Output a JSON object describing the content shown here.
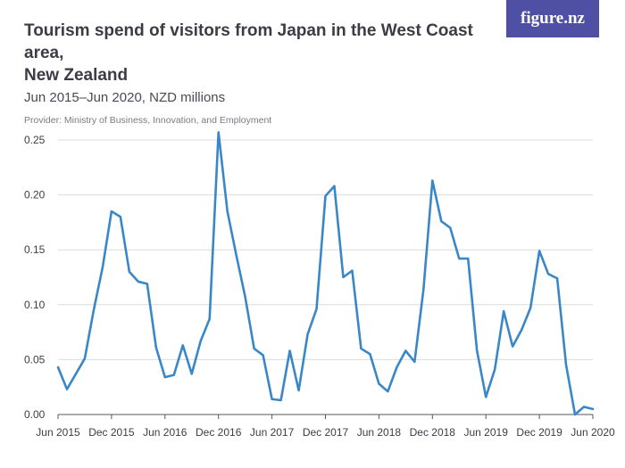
{
  "header": {
    "title_line1": "Tourism spend of visitors from Japan in the West Coast area,",
    "title_line2": "New Zealand",
    "subtitle": "Jun 2015–Jun 2020, NZD millions",
    "provider": "Provider: Ministry of Business, Innovation, and Employment"
  },
  "brand": {
    "logo_text": "figure.nz",
    "logo_color": "#4f4fa3"
  },
  "chart_data": {
    "type": "line",
    "title": "Tourism spend of visitors from Japan in the West Coast area, New Zealand",
    "subtitle": "Jun 2015–Jun 2020, NZD millions",
    "xlabel": "",
    "ylabel": "",
    "ylim": [
      0,
      0.25
    ],
    "y_ticks": [
      "0.00",
      "0.05",
      "0.10",
      "0.15",
      "0.20",
      "0.25"
    ],
    "x_ticks": [
      "Jun 2015",
      "Dec 2015",
      "Jun 2016",
      "Dec 2016",
      "Jun 2017",
      "Dec 2017",
      "Jun 2018",
      "Dec 2018",
      "Jun 2019",
      "Dec 2019",
      "Jun 2020"
    ],
    "grid": true,
    "line_color": "#3a87c8",
    "series": [
      {
        "x": [
          "Jun 2015",
          "Jul 2015",
          "Aug 2015",
          "Sep 2015",
          "Oct 2015",
          "Nov 2015",
          "Dec 2015",
          "Jan 2016",
          "Feb 2016",
          "Mar 2016",
          "Apr 2016",
          "May 2016",
          "Jun 2016",
          "Jul 2016",
          "Aug 2016",
          "Sep 2016",
          "Oct 2016",
          "Nov 2016",
          "Dec 2016",
          "Jan 2017",
          "Feb 2017",
          "Mar 2017",
          "Apr 2017",
          "May 2017",
          "Jun 2017",
          "Jul 2017",
          "Aug 2017",
          "Sep 2017",
          "Oct 2017",
          "Nov 2017",
          "Dec 2017",
          "Jan 2018",
          "Feb 2018",
          "Mar 2018",
          "Apr 2018",
          "May 2018",
          "Jun 2018",
          "Jul 2018",
          "Aug 2018",
          "Sep 2018",
          "Oct 2018",
          "Nov 2018",
          "Dec 2018",
          "Jan 2019",
          "Feb 2019",
          "Mar 2019",
          "Apr 2019",
          "May 2019",
          "Jun 2019",
          "Jul 2019",
          "Aug 2019",
          "Sep 2019",
          "Oct 2019",
          "Nov 2019",
          "Dec 2019",
          "Jan 2020",
          "Feb 2020",
          "Mar 2020",
          "Apr 2020",
          "May 2020",
          "Jun 2020"
        ],
        "values": [
          0.043,
          0.023,
          0.037,
          0.051,
          0.095,
          0.134,
          0.185,
          0.18,
          0.13,
          0.121,
          0.119,
          0.061,
          0.034,
          0.036,
          0.063,
          0.037,
          0.067,
          0.087,
          0.257,
          0.185,
          0.145,
          0.107,
          0.06,
          0.054,
          0.014,
          0.013,
          0.058,
          0.022,
          0.073,
          0.096,
          0.199,
          0.208,
          0.125,
          0.131,
          0.06,
          0.055,
          0.028,
          0.021,
          0.043,
          0.058,
          0.048,
          0.114,
          0.213,
          0.176,
          0.17,
          0.142,
          0.142,
          0.058,
          0.016,
          0.041,
          0.094,
          0.062,
          0.077,
          0.097,
          0.149,
          0.128,
          0.124,
          0.045,
          0.0,
          0.007,
          0.005
        ]
      }
    ]
  }
}
